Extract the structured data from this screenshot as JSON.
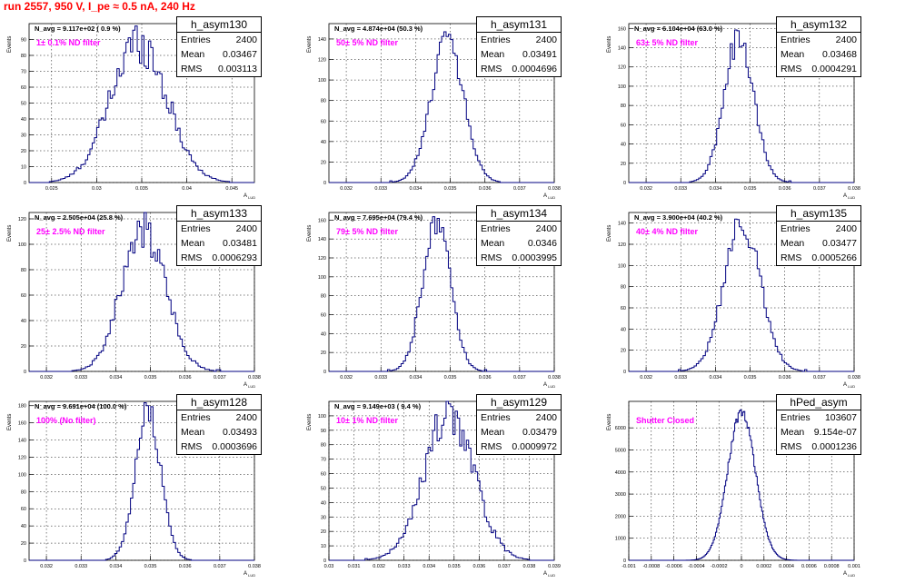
{
  "page": {
    "title": "run 2557,   950 V, I_pe ≈ 0.5 nA, 240 Hz"
  },
  "labels": {
    "y_axis": "Events",
    "x_axis_main": "A",
    "x_axis_sub": "LUD"
  },
  "stat_labels": {
    "entries": "Entries",
    "mean": "Mean",
    "rms": "RMS"
  },
  "colors": {
    "histogram": "#000080",
    "annotation": "#ff00ff",
    "title": "#ff0000",
    "grid": "#000000"
  },
  "chart_data": [
    {
      "type": "histogram",
      "name": "h_asym130",
      "navg": "N_avg = 9.117e+02 ( 0.9 %)",
      "filter": "1± 0.1% ND filter",
      "entries": "2400",
      "mean_text": "0.03467",
      "rms_text": "0.003113",
      "mean": 0.03467,
      "rms": 0.003113,
      "peak": 89,
      "xlim": [
        0.0225,
        0.0475
      ],
      "xticks": [
        "0.025",
        "0.03",
        "0.035",
        "0.04",
        "0.045"
      ],
      "xtick_values": [
        0.025,
        0.03,
        0.035,
        0.04,
        0.045
      ],
      "ylim": [
        0,
        100
      ],
      "yticks": [
        "0",
        "10",
        "20",
        "30",
        "40",
        "50",
        "60",
        "70",
        "80",
        "90"
      ],
      "ytick_values": [
        0,
        10,
        20,
        30,
        40,
        50,
        60,
        70,
        80,
        90
      ],
      "bins": 100
    },
    {
      "type": "histogram",
      "name": "h_asym131",
      "navg": "N_avg = 4.874e+04 (50.3 %)",
      "filter": "50± 5% ND filter",
      "entries": "2400",
      "mean_text": "0.03491",
      "rms_text": "0.0004696",
      "mean": 0.03491,
      "rms": 0.0004696,
      "peak": 140,
      "xlim": [
        0.0315,
        0.038
      ],
      "xticks": [
        "0.032",
        "0.033",
        "0.034",
        "0.035",
        "0.036",
        "0.037",
        "0.038"
      ],
      "xtick_values": [
        0.032,
        0.033,
        0.034,
        0.035,
        0.036,
        0.037,
        0.038
      ],
      "ylim": [
        0,
        155
      ],
      "yticks": [
        "0",
        "20",
        "40",
        "60",
        "80",
        "100",
        "120",
        "140"
      ],
      "ytick_values": [
        0,
        20,
        40,
        60,
        80,
        100,
        120,
        140
      ],
      "bins": 100
    },
    {
      "type": "histogram",
      "name": "h_asym132",
      "navg": "N_avg = 6.104e+04 (63.0 %)",
      "filter": "63± 5% ND filter",
      "entries": "2400",
      "mean_text": "0.03468",
      "rms_text": "0.0004291",
      "mean": 0.03468,
      "rms": 0.0004291,
      "peak": 150,
      "xlim": [
        0.0315,
        0.038
      ],
      "xticks": [
        "0.032",
        "0.033",
        "0.034",
        "0.035",
        "0.036",
        "0.037",
        "0.038"
      ],
      "xtick_values": [
        0.032,
        0.033,
        0.034,
        0.035,
        0.036,
        0.037,
        0.038
      ],
      "ylim": [
        0,
        165
      ],
      "yticks": [
        "0",
        "20",
        "40",
        "60",
        "80",
        "100",
        "120",
        "140",
        "160"
      ],
      "ytick_values": [
        0,
        20,
        40,
        60,
        80,
        100,
        120,
        140,
        160
      ],
      "bins": 100
    },
    {
      "type": "histogram",
      "name": "h_asym133",
      "navg": "N_avg = 2.505e+04 (25.8 %)",
      "filter": "25± 2.5% ND filter",
      "entries": "2400",
      "mean_text": "0.03481",
      "rms_text": "0.0006293",
      "mean": 0.03481,
      "rms": 0.0006293,
      "peak": 112,
      "xlim": [
        0.0315,
        0.038
      ],
      "xticks": [
        "0.032",
        "0.033",
        "0.034",
        "0.035",
        "0.036",
        "0.037",
        "0.038"
      ],
      "xtick_values": [
        0.032,
        0.033,
        0.034,
        0.035,
        0.036,
        0.037,
        0.038
      ],
      "ylim": [
        0,
        125
      ],
      "yticks": [
        "0",
        "20",
        "40",
        "60",
        "80",
        "100",
        "120"
      ],
      "ytick_values": [
        0,
        20,
        40,
        60,
        80,
        100,
        120
      ],
      "bins": 100
    },
    {
      "type": "histogram",
      "name": "h_asym134",
      "navg": "N_avg = 7.695e+04 (79.4 %)",
      "filter": "79± 5% ND filter",
      "entries": "2400",
      "mean_text": "0.0346",
      "rms_text": "0.0003995",
      "mean": 0.0346,
      "rms": 0.0003995,
      "peak": 160,
      "xlim": [
        0.0315,
        0.038
      ],
      "xticks": [
        "0.032",
        "0.033",
        "0.034",
        "0.035",
        "0.036",
        "0.037",
        "0.038"
      ],
      "xtick_values": [
        0.032,
        0.033,
        0.034,
        0.035,
        0.036,
        0.037,
        0.038
      ],
      "ylim": [
        0,
        168
      ],
      "yticks": [
        "0",
        "20",
        "40",
        "60",
        "80",
        "100",
        "120",
        "140",
        "160"
      ],
      "ytick_values": [
        0,
        20,
        40,
        60,
        80,
        100,
        120,
        140,
        160
      ],
      "bins": 100
    },
    {
      "type": "histogram",
      "name": "h_asym135",
      "navg": "N_avg = 3.900e+04 (40.2 %)",
      "filter": "40± 4% ND filter",
      "entries": "2400",
      "mean_text": "0.03477",
      "rms_text": "0.0005266",
      "mean": 0.03477,
      "rms": 0.0005266,
      "peak": 140,
      "xlim": [
        0.0315,
        0.038
      ],
      "xticks": [
        "0.032",
        "0.033",
        "0.034",
        "0.035",
        "0.036",
        "0.037",
        "0.038"
      ],
      "xtick_values": [
        0.032,
        0.033,
        0.034,
        0.035,
        0.036,
        0.037,
        0.038
      ],
      "ylim": [
        0,
        150
      ],
      "yticks": [
        "0",
        "20",
        "40",
        "60",
        "80",
        "100",
        "120",
        "140"
      ],
      "ytick_values": [
        0,
        20,
        40,
        60,
        80,
        100,
        120,
        140
      ],
      "bins": 100
    },
    {
      "type": "histogram",
      "name": "h_asym128",
      "navg": "N_avg = 9.691e+04 (100.0 %)",
      "filter": "100% (No filter)",
      "entries": "2400",
      "mean_text": "0.03493",
      "rms_text": "0.0003696",
      "mean": 0.03493,
      "rms": 0.0003696,
      "peak": 172,
      "xlim": [
        0.0315,
        0.038
      ],
      "xticks": [
        "0.032",
        "0.033",
        "0.034",
        "0.035",
        "0.036",
        "0.037",
        "0.038"
      ],
      "xtick_values": [
        0.032,
        0.033,
        0.034,
        0.035,
        0.036,
        0.037,
        0.038
      ],
      "ylim": [
        0,
        185
      ],
      "yticks": [
        "0",
        "20",
        "40",
        "60",
        "80",
        "100",
        "120",
        "140",
        "160",
        "180"
      ],
      "ytick_values": [
        0,
        20,
        40,
        60,
        80,
        100,
        120,
        140,
        160,
        180
      ],
      "bins": 100
    },
    {
      "type": "histogram",
      "name": "h_asym129",
      "navg": "N_avg = 9.149e+03 ( 9.4 %)",
      "filter": "10± 1% ND filter",
      "entries": "2400",
      "mean_text": "0.03479",
      "rms_text": "0.0009972",
      "mean": 0.03479,
      "rms": 0.0009972,
      "peak": 100,
      "xlim": [
        0.03,
        0.039
      ],
      "xticks": [
        "0.03",
        "0.031",
        "0.032",
        "0.033",
        "0.034",
        "0.035",
        "0.036",
        "0.037",
        "0.038",
        "0.039"
      ],
      "xtick_values": [
        0.03,
        0.031,
        0.032,
        0.033,
        0.034,
        0.035,
        0.036,
        0.037,
        0.038,
        0.039
      ],
      "ylim": [
        0,
        110
      ],
      "yticks": [
        "0",
        "10",
        "20",
        "30",
        "40",
        "50",
        "60",
        "70",
        "80",
        "90",
        "100"
      ],
      "ytick_values": [
        0,
        10,
        20,
        30,
        40,
        50,
        60,
        70,
        80,
        90,
        100
      ],
      "bins": 100
    },
    {
      "type": "histogram",
      "name": "hPed_asym",
      "navg": "",
      "filter": "Shutter Closed",
      "entries": "103607",
      "mean_text": "9.154e-07",
      "rms_text": "0.0001236",
      "mean": 9.15e-07,
      "rms": 0.0001236,
      "peak": 6700,
      "xlim": [
        -0.001,
        0.001
      ],
      "xticks": [
        "-0.001",
        "-0.0008",
        "-0.0006",
        "-0.0004",
        "-0.0002",
        "0",
        "0.0002",
        "0.0004",
        "0.0006",
        "0.0008",
        "0.001"
      ],
      "xtick_values": [
        -0.001,
        -0.0008,
        -0.0006,
        -0.0004,
        -0.0002,
        0,
        0.0002,
        0.0004,
        0.0006,
        0.0008,
        0.001
      ],
      "ylim": [
        0,
        7200
      ],
      "yticks": [
        "0",
        "1000",
        "2000",
        "3000",
        "4000",
        "5000",
        "6000"
      ],
      "ytick_values": [
        0,
        1000,
        2000,
        3000,
        4000,
        5000,
        6000
      ],
      "bins": 200
    }
  ]
}
